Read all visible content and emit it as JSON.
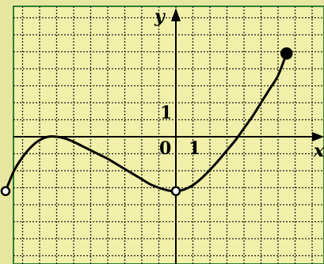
{
  "chart_data": {
    "type": "line",
    "title": "",
    "xlabel": "x",
    "ylabel": "y",
    "tick_labels": {
      "origin": "0",
      "x_one": "1",
      "y_one": "1"
    },
    "xlim": [
      -10,
      9
    ],
    "ylim": [
      -8,
      8.5
    ],
    "grid": true,
    "series": [
      {
        "x": [
          -10,
          -9.5,
          -9,
          -8.5,
          -8,
          -7.5,
          -7,
          -6.5,
          -6,
          -5.5,
          -5,
          -4.5,
          -4,
          -3.5,
          -3,
          -2.5,
          -2,
          -1.5,
          -1,
          -0.5,
          0,
          0.5,
          1,
          1.5,
          2,
          2.5,
          3,
          3.5,
          4,
          4.5,
          5,
          5.5,
          6,
          6.5
        ],
        "y": [
          -3.2,
          -2.0,
          -1.2,
          -0.6,
          -0.2,
          0.0,
          0.0,
          -0.1,
          -0.3,
          -0.55,
          -0.8,
          -1.05,
          -1.3,
          -1.6,
          -1.9,
          -2.2,
          -2.5,
          -2.8,
          -3.0,
          -3.15,
          -3.2,
          -3.1,
          -2.85,
          -2.45,
          -1.95,
          -1.4,
          -0.8,
          -0.2,
          0.5,
          1.2,
          2.0,
          2.8,
          3.6,
          4.9
        ]
      }
    ],
    "endpoints": [
      {
        "x": -10,
        "y": -3.2,
        "style": "open"
      },
      {
        "x": 0,
        "y": -3.2,
        "style": "open"
      },
      {
        "x": 6.5,
        "y": 4.9,
        "style": "filled"
      }
    ]
  }
}
